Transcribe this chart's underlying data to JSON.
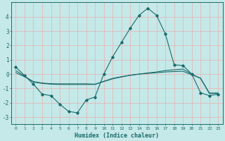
{
  "xlabel": "Humidex (Indice chaleur)",
  "background_color": "#c5e8e8",
  "grid_color": "#e8b0b0",
  "line_color": "#1a6b6b",
  "xlim": [
    -0.5,
    23.5
  ],
  "ylim": [
    -3.5,
    5.0
  ],
  "xticks": [
    0,
    1,
    2,
    3,
    4,
    5,
    6,
    7,
    8,
    9,
    10,
    11,
    12,
    13,
    14,
    15,
    16,
    17,
    18,
    19,
    20,
    21,
    22,
    23
  ],
  "yticks": [
    -3,
    -2,
    -1,
    0,
    1,
    2,
    3,
    4
  ],
  "line1_x": [
    0,
    1,
    2,
    3,
    4,
    5,
    6,
    7,
    8,
    9,
    10,
    11,
    12,
    13,
    14,
    15,
    16,
    17,
    18,
    19,
    20,
    21,
    22,
    23
  ],
  "line1_y": [
    0.5,
    -0.1,
    -0.7,
    -1.4,
    -1.5,
    -2.1,
    -2.6,
    -2.7,
    -1.8,
    -1.6,
    0.0,
    1.2,
    2.2,
    3.2,
    4.1,
    4.6,
    4.1,
    2.8,
    0.65,
    0.6,
    0.0,
    -1.3,
    -1.5,
    -1.4
  ],
  "line2_x": [
    0,
    1,
    2,
    3,
    4,
    5,
    6,
    7,
    8,
    9,
    10,
    11,
    12,
    13,
    14,
    15,
    16,
    17,
    18,
    19,
    20,
    21,
    22,
    23
  ],
  "line2_y": [
    0.25,
    -0.15,
    -0.55,
    -0.65,
    -0.7,
    -0.72,
    -0.72,
    -0.72,
    -0.72,
    -0.72,
    -0.5,
    -0.3,
    -0.18,
    -0.08,
    0.0,
    0.08,
    0.15,
    0.25,
    0.3,
    0.35,
    0.0,
    -0.3,
    -1.35,
    -1.35
  ],
  "line3_x": [
    0,
    1,
    2,
    3,
    4,
    5,
    6,
    7,
    8,
    9,
    10,
    11,
    12,
    13,
    14,
    15,
    16,
    17,
    18,
    19,
    20,
    21,
    22,
    23
  ],
  "line3_y": [
    0.1,
    -0.18,
    -0.52,
    -0.62,
    -0.67,
    -0.68,
    -0.68,
    -0.68,
    -0.68,
    -0.7,
    -0.52,
    -0.33,
    -0.2,
    -0.08,
    0.0,
    0.05,
    0.1,
    0.15,
    0.18,
    0.2,
    -0.05,
    -0.28,
    -1.32,
    -1.32
  ]
}
